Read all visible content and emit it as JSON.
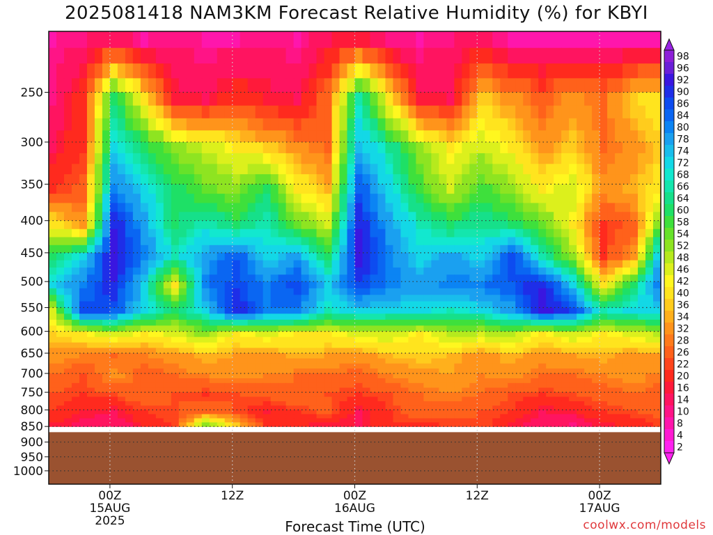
{
  "title": "2025081418 NAM3KM Forecast Relative Humidity (%) for KBYI",
  "xaxis_title": "Forecast Time (UTC)",
  "credit": "coolwx.com/models",
  "colors": {
    "ground": "#9a5230",
    "frame": "#111111",
    "grid": "#333333"
  },
  "chart_data": {
    "type": "heatmap",
    "title": "2025081418 NAM3KM Forecast Relative Humidity (%) for KBYI",
    "xlabel": "Forecast Time (UTC)",
    "ylabel": "",
    "y_scale": "log-pressure",
    "ylim": [
      1050,
      200
    ],
    "grid": true,
    "x_ticks": [
      {
        "label": "00Z",
        "sub": "15AUG",
        "sub2": "2025",
        "hour": 6
      },
      {
        "label": "12Z",
        "sub": "",
        "sub2": "",
        "hour": 18
      },
      {
        "label": "00Z",
        "sub": "16AUG",
        "sub2": "",
        "hour": 30
      },
      {
        "label": "12Z",
        "sub": "",
        "sub2": "",
        "hour": 42
      },
      {
        "label": "00Z",
        "sub": "17AUG",
        "sub2": "",
        "hour": 54
      }
    ],
    "x_range_hours": [
      0,
      60
    ],
    "y_ticks": [
      250,
      300,
      350,
      400,
      450,
      500,
      550,
      600,
      650,
      700,
      750,
      800,
      850,
      900,
      950,
      1000
    ],
    "ground_level_hpa": 868,
    "colorbar_labels": [
      98,
      96,
      92,
      90,
      86,
      84,
      80,
      78,
      74,
      72,
      68,
      66,
      64,
      60,
      58,
      54,
      52,
      48,
      46,
      42,
      40,
      36,
      34,
      32,
      28,
      26,
      22,
      20,
      16,
      14,
      10,
      8,
      4,
      2
    ],
    "colorbar_colors": [
      "#8d1fd8",
      "#6a1fd8",
      "#3a16e0",
      "#1e2ee8",
      "#0d4cf0",
      "#0a66f2",
      "#0b84f4",
      "#1aa0f0",
      "#19bdec",
      "#13d8e6",
      "#12e8cf",
      "#14e6ad",
      "#16e08a",
      "#1ee066",
      "#3ee03c",
      "#66e22a",
      "#8ee421",
      "#b6ea1d",
      "#dcf01c",
      "#fff71f",
      "#ffe41e",
      "#ffcc1d",
      "#ffb01c",
      "#ff941b",
      "#ff7a1b",
      "#ff611b",
      "#ff451c",
      "#ff2a1e",
      "#ff1a3a",
      "#ff1460",
      "#ff1486",
      "#ff16ac",
      "#ff1ad2",
      "#ff22f0"
    ],
    "series": [
      {
        "times": [
          0,
          3,
          6,
          9,
          12,
          15,
          18,
          21,
          24,
          27,
          30,
          33,
          36,
          39,
          42,
          45,
          48,
          51,
          54,
          57,
          60
        ],
        "pressure_levels": [
          200,
          250,
          300,
          350,
          400,
          450,
          500,
          550,
          600,
          650,
          700,
          750,
          800,
          850
        ],
        "rh": [
          [
            8,
            10,
            14,
            8,
            10,
            8,
            8,
            10,
            8,
            14,
            16,
            10,
            8,
            10,
            12,
            8,
            8,
            8,
            8,
            8,
            8
          ],
          [
            10,
            20,
            60,
            40,
            16,
            14,
            20,
            16,
            14,
            26,
            66,
            40,
            16,
            14,
            36,
            30,
            24,
            30,
            26,
            36,
            40
          ],
          [
            14,
            20,
            70,
            60,
            50,
            46,
            40,
            36,
            30,
            26,
            74,
            64,
            50,
            40,
            46,
            40,
            30,
            36,
            26,
            30,
            36
          ],
          [
            20,
            24,
            80,
            70,
            60,
            54,
            50,
            60,
            40,
            34,
            84,
            70,
            56,
            46,
            56,
            50,
            40,
            46,
            30,
            34,
            40
          ],
          [
            40,
            30,
            90,
            76,
            60,
            66,
            60,
            66,
            54,
            46,
            90,
            76,
            66,
            60,
            64,
            60,
            54,
            40,
            20,
            24,
            60
          ],
          [
            60,
            70,
            92,
            80,
            66,
            76,
            84,
            70,
            76,
            60,
            92,
            80,
            70,
            76,
            70,
            86,
            66,
            50,
            20,
            30,
            84
          ],
          [
            70,
            80,
            90,
            70,
            40,
            80,
            86,
            80,
            86,
            72,
            86,
            80,
            76,
            80,
            80,
            84,
            90,
            72,
            40,
            60,
            86
          ],
          [
            46,
            86,
            84,
            70,
            60,
            70,
            90,
            80,
            80,
            66,
            72,
            70,
            70,
            66,
            70,
            76,
            92,
            86,
            66,
            70,
            72
          ],
          [
            36,
            40,
            46,
            40,
            44,
            50,
            40,
            44,
            40,
            40,
            44,
            46,
            40,
            48,
            46,
            48,
            40,
            46,
            40,
            44,
            48
          ],
          [
            30,
            28,
            26,
            28,
            30,
            34,
            32,
            30,
            34,
            32,
            30,
            34,
            36,
            34,
            30,
            34,
            30,
            32,
            34,
            30,
            32
          ],
          [
            26,
            22,
            30,
            24,
            26,
            28,
            30,
            28,
            26,
            26,
            24,
            28,
            30,
            32,
            28,
            30,
            26,
            26,
            28,
            30,
            26
          ],
          [
            22,
            20,
            22,
            26,
            22,
            20,
            22,
            24,
            26,
            22,
            20,
            22,
            26,
            28,
            26,
            22,
            20,
            22,
            24,
            26,
            24
          ],
          [
            20,
            16,
            14,
            20,
            22,
            26,
            22,
            16,
            20,
            24,
            14,
            20,
            26,
            24,
            22,
            20,
            14,
            16,
            20,
            22,
            24
          ],
          [
            14,
            12,
            10,
            16,
            20,
            60,
            40,
            20,
            16,
            12,
            14,
            20,
            16,
            20,
            22,
            14,
            10,
            8,
            14,
            16,
            20
          ]
        ]
      }
    ]
  }
}
